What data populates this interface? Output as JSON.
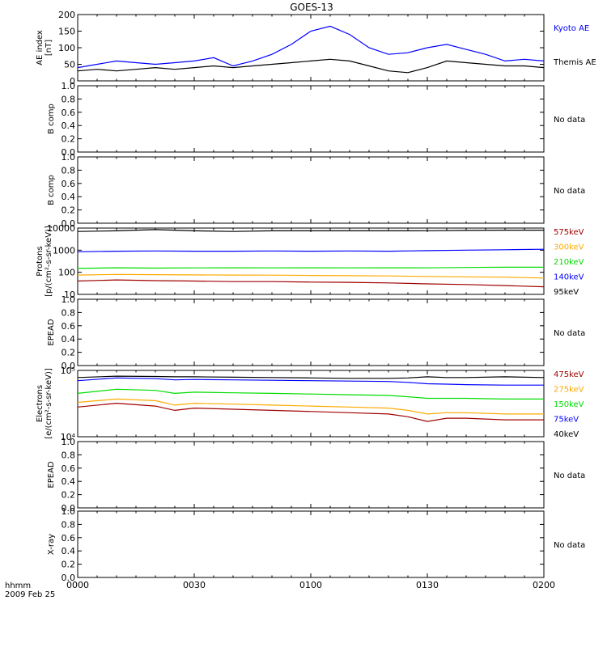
{
  "title": "GOES-13",
  "x_axis": {
    "label_line1": "hhmm",
    "label_line2": "2009 Feb 25",
    "ticks": [
      "0000",
      "0030",
      "0100",
      "0130",
      "0200"
    ]
  },
  "no_data_label": "No data",
  "colors": {
    "black": "#000000",
    "blue": "#0000ff",
    "red": "#a00000",
    "orange": "#ffaa00",
    "green": "#00dd00"
  },
  "chart_data": [
    {
      "id": "ae",
      "type": "line",
      "ylabel": [
        "AE index",
        "[nT]"
      ],
      "scale": "linear",
      "ylim": [
        0,
        200
      ],
      "yticks": [
        0,
        50,
        100,
        150,
        200
      ],
      "ytick_labels": [
        "0",
        "50",
        "100",
        "150",
        "200"
      ],
      "x_minutes": [
        0,
        5,
        10,
        15,
        20,
        25,
        30,
        35,
        40,
        45,
        50,
        55,
        60,
        65,
        70,
        75,
        80,
        85,
        90,
        95,
        100,
        105,
        110,
        115,
        120
      ],
      "series": [
        {
          "name": "Kyoto AE",
          "color": "blue",
          "values": [
            40,
            50,
            60,
            55,
            50,
            55,
            60,
            70,
            45,
            60,
            80,
            110,
            150,
            165,
            140,
            100,
            80,
            85,
            100,
            110,
            95,
            80,
            60,
            65,
            60
          ]
        },
        {
          "name": "Themis AE",
          "color": "black",
          "values": [
            30,
            35,
            30,
            35,
            40,
            35,
            40,
            45,
            40,
            45,
            50,
            55,
            60,
            65,
            60,
            45,
            30,
            25,
            40,
            60,
            55,
            50,
            45,
            45,
            40
          ]
        }
      ]
    },
    {
      "id": "bcomp1",
      "type": "line",
      "ylabel": [
        "B comp"
      ],
      "scale": "linear",
      "ylim": [
        0,
        1
      ],
      "yticks": [
        0,
        0.2,
        0.4,
        0.6,
        0.8,
        1.0
      ],
      "ytick_labels": [
        "0.0",
        "0.2",
        "0.4",
        "0.6",
        "0.8",
        "1.0"
      ],
      "no_data": true,
      "series": []
    },
    {
      "id": "bcomp2",
      "type": "line",
      "ylabel": [
        "B comp"
      ],
      "scale": "linear",
      "ylim": [
        0,
        1
      ],
      "yticks": [
        0,
        0.2,
        0.4,
        0.6,
        0.8,
        1.0
      ],
      "ytick_labels": [
        "0.0",
        "0.2",
        "0.4",
        "0.6",
        "0.8",
        "1.0"
      ],
      "no_data": true,
      "series": []
    },
    {
      "id": "protons",
      "type": "line",
      "ylabel": [
        "Protons",
        "[p/(cm²-s-sr-keV)]"
      ],
      "scale": "log",
      "ylim": [
        10,
        10000
      ],
      "yticks": [
        10,
        100,
        1000,
        10000
      ],
      "ytick_labels": [
        "10",
        "100",
        "1000",
        "10000"
      ],
      "x_minutes": [
        0,
        10,
        20,
        30,
        40,
        50,
        60,
        70,
        80,
        90,
        100,
        110,
        120
      ],
      "series": [
        {
          "name": "575keV",
          "color": "red",
          "values": [
            40,
            45,
            42,
            40,
            38,
            38,
            36,
            35,
            33,
            30,
            28,
            25,
            22
          ]
        },
        {
          "name": "300keV",
          "color": "orange",
          "values": [
            75,
            80,
            78,
            76,
            75,
            74,
            72,
            70,
            68,
            65,
            62,
            60,
            55
          ]
        },
        {
          "name": "210keV",
          "color": "green",
          "values": [
            150,
            160,
            155,
            158,
            160,
            158,
            160,
            158,
            160,
            158,
            165,
            170,
            170
          ]
        },
        {
          "name": "140keV",
          "color": "blue",
          "values": [
            850,
            900,
            920,
            900,
            900,
            920,
            900,
            920,
            900,
            950,
            1000,
            1050,
            1100
          ]
        },
        {
          "name": "95keV",
          "color": "black",
          "values": [
            7000,
            7500,
            8500,
            7500,
            7000,
            7500,
            7500,
            7500,
            7500,
            7600,
            7800,
            8000,
            8000
          ]
        }
      ]
    },
    {
      "id": "epead1",
      "type": "line",
      "ylabel": [
        "EPEAD"
      ],
      "scale": "linear",
      "ylim": [
        0,
        1
      ],
      "yticks": [
        0,
        0.2,
        0.4,
        0.6,
        0.8,
        1.0
      ],
      "ytick_labels": [
        "0.0",
        "0.2",
        "0.4",
        "0.6",
        "0.8",
        "1.0"
      ],
      "no_data": true,
      "series": []
    },
    {
      "id": "electrons",
      "type": "line",
      "ylabel": [
        "Electrons",
        "[e/(cm²-s-sr-keV)]"
      ],
      "scale": "log",
      "ylim": [
        10000,
        100000
      ],
      "yticks": [
        10000,
        100000
      ],
      "ytick_labels": [
        "10⁴",
        "10⁵"
      ],
      "x_minutes": [
        0,
        10,
        20,
        25,
        30,
        40,
        50,
        60,
        70,
        80,
        85,
        90,
        95,
        100,
        110,
        120
      ],
      "series": [
        {
          "name": "475keV",
          "color": "red",
          "values": [
            28000,
            32000,
            29000,
            25000,
            27000,
            26000,
            25000,
            24000,
            23000,
            22000,
            20000,
            17000,
            19000,
            19000,
            18000,
            18000
          ]
        },
        {
          "name": "275keV",
          "color": "orange",
          "values": [
            33000,
            37000,
            35000,
            30000,
            32000,
            31000,
            30000,
            29000,
            28000,
            27000,
            25000,
            22000,
            23000,
            23000,
            22000,
            22000
          ]
        },
        {
          "name": "150keV",
          "color": "green",
          "values": [
            45000,
            52000,
            50000,
            45000,
            47000,
            46000,
            45000,
            44000,
            43000,
            42000,
            40000,
            38000,
            38000,
            38000,
            37000,
            37000
          ]
        },
        {
          "name": "75keV",
          "color": "blue",
          "values": [
            70000,
            77000,
            75000,
            72000,
            73000,
            72000,
            71000,
            70000,
            69000,
            68000,
            66000,
            63000,
            62000,
            61000,
            60000,
            60000
          ]
        },
        {
          "name": "40keV",
          "color": "black",
          "values": [
            78000,
            82000,
            81000,
            80000,
            80000,
            79000,
            78000,
            77000,
            76000,
            76000,
            77000,
            80000,
            78000,
            78000,
            80000,
            78000
          ]
        }
      ]
    },
    {
      "id": "epead2",
      "type": "line",
      "ylabel": [
        "EPEAD"
      ],
      "scale": "linear",
      "ylim": [
        0,
        1
      ],
      "yticks": [
        0,
        0.2,
        0.4,
        0.6,
        0.8,
        1.0
      ],
      "ytick_labels": [
        "0.0",
        "0.2",
        "0.4",
        "0.6",
        "0.8",
        "1.0"
      ],
      "no_data": true,
      "series": []
    },
    {
      "id": "xray",
      "type": "line",
      "ylabel": [
        "X-ray"
      ],
      "scale": "linear",
      "ylim": [
        0,
        1
      ],
      "yticks": [
        0,
        0.2,
        0.4,
        0.6,
        0.8,
        1.0
      ],
      "ytick_labels": [
        "0.0",
        "0.2",
        "0.4",
        "0.6",
        "0.8",
        "1.0"
      ],
      "no_data": true,
      "series": []
    }
  ]
}
